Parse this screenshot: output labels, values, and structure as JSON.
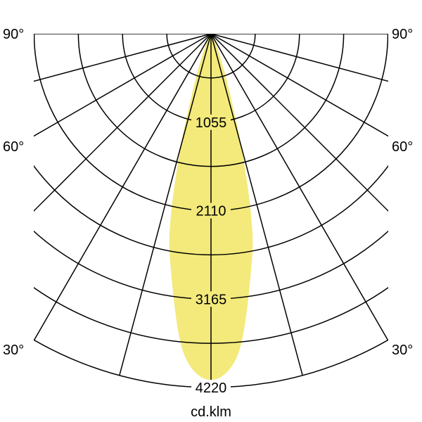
{
  "chart_data": {
    "type": "polar",
    "unit_label": "cd.klm",
    "radial_max": 4220,
    "radial_labels": [
      "1055",
      "2110",
      "3165",
      "4220"
    ],
    "radial_label_values": [
      1055,
      2110,
      3165,
      4220
    ],
    "radial_grid_step": 527.5,
    "angle_grid_step_deg": 15,
    "angle_labels_left": [
      "90°",
      "60°",
      "30°"
    ],
    "angle_labels_right": [
      "90°",
      "60°",
      "30°"
    ],
    "angle_label_values": [
      90,
      60,
      30
    ],
    "fill_color": "#f3ea7b",
    "series": [
      {
        "angles_deg": [
          0,
          5,
          10,
          12.5,
          15,
          17.5,
          20,
          25,
          30
        ],
        "values": [
          4130,
          3810,
          2790,
          2200,
          1400,
          750,
          420,
          150,
          0
        ],
        "symmetric": true
      }
    ]
  }
}
